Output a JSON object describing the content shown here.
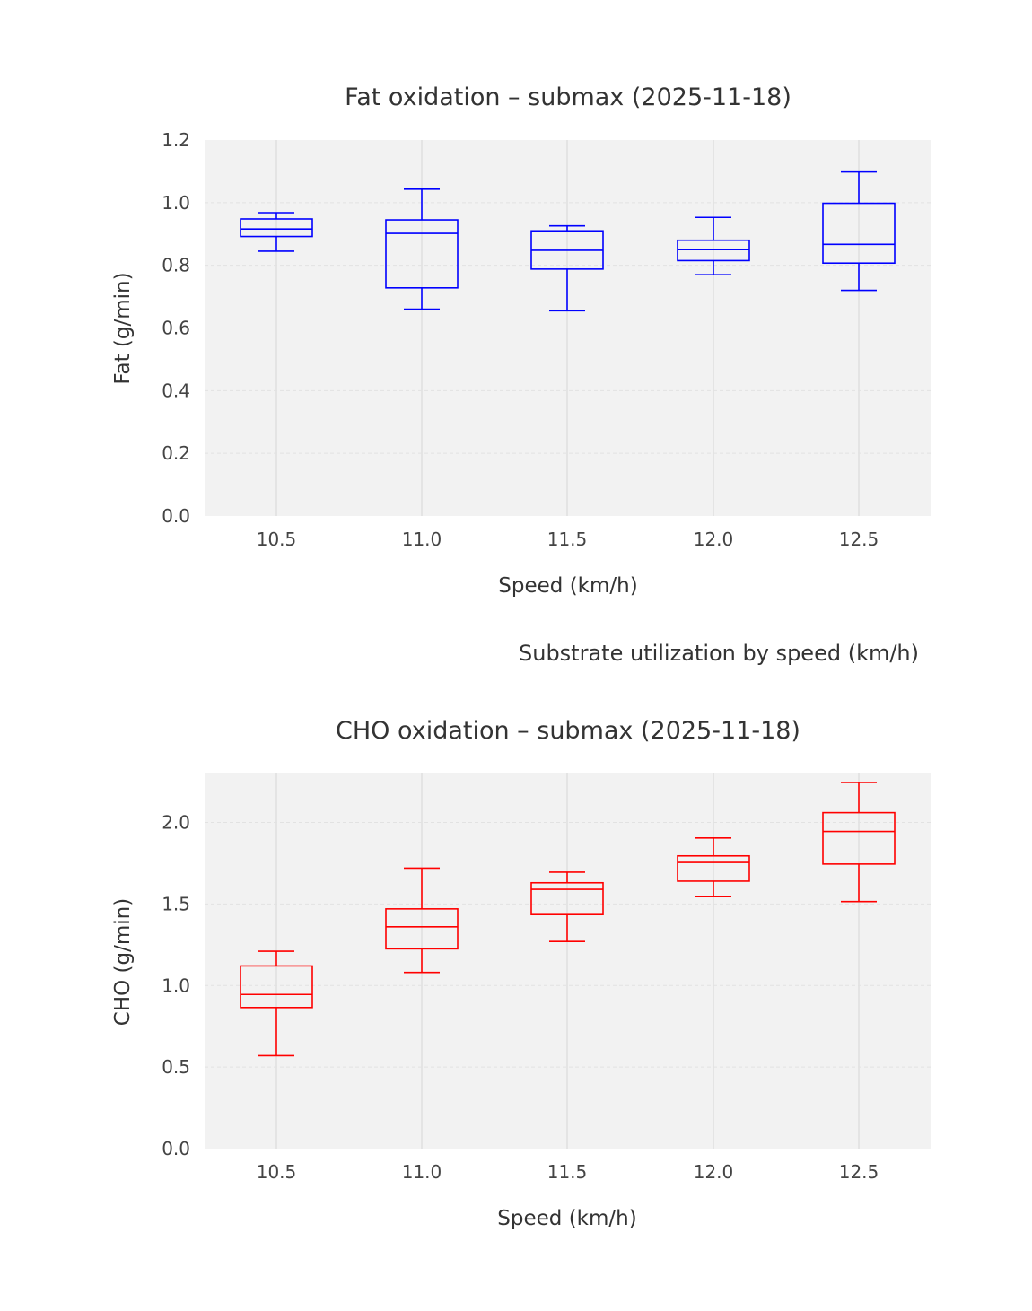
{
  "suptitle": "Substrate utilization by speed (km/h)",
  "chart_data": [
    {
      "type": "box",
      "title": "Fat oxidation – submax (2025-11-18)",
      "xlabel": "Speed (km/h)",
      "ylabel": "Fat (g/min)",
      "categories": [
        "10.5",
        "11.0",
        "11.5",
        "12.0",
        "12.5"
      ],
      "ylim": [
        0,
        1.2
      ],
      "yticks": [
        0.0,
        0.2,
        0.4,
        0.6,
        0.8,
        1.0,
        1.2
      ],
      "ytick_labels": [
        "0.0",
        "0.2",
        "0.4",
        "0.6",
        "0.8",
        "1.0",
        "1.2"
      ],
      "grid": true,
      "color": "#0000ff",
      "boxes": [
        {
          "whislo": 0.845,
          "q1": 0.892,
          "med": 0.916,
          "q3": 0.948,
          "whishi": 0.968
        },
        {
          "whislo": 0.66,
          "q1": 0.728,
          "med": 0.902,
          "q3": 0.945,
          "whishi": 1.043
        },
        {
          "whislo": 0.655,
          "q1": 0.788,
          "med": 0.848,
          "q3": 0.91,
          "whishi": 0.926
        },
        {
          "whislo": 0.77,
          "q1": 0.815,
          "med": 0.85,
          "q3": 0.88,
          "whishi": 0.953
        },
        {
          "whislo": 0.72,
          "q1": 0.807,
          "med": 0.867,
          "q3": 0.998,
          "whishi": 1.098
        }
      ]
    },
    {
      "type": "box",
      "title": "CHO oxidation – submax (2025-11-18)",
      "xlabel": "Speed (km/h)",
      "ylabel": "CHO (g/min)",
      "categories": [
        "10.5",
        "11.0",
        "11.5",
        "12.0",
        "12.5"
      ],
      "ylim": [
        0,
        2.3
      ],
      "yticks": [
        0.0,
        0.5,
        1.0,
        1.5,
        2.0
      ],
      "ytick_labels": [
        "0.0",
        "0.5",
        "1.0",
        "1.5",
        "2.0"
      ],
      "grid": true,
      "color": "#ff0000",
      "boxes": [
        {
          "whislo": 0.57,
          "q1": 0.865,
          "med": 0.945,
          "q3": 1.12,
          "whishi": 1.21
        },
        {
          "whislo": 1.08,
          "q1": 1.225,
          "med": 1.36,
          "q3": 1.47,
          "whishi": 1.72
        },
        {
          "whislo": 1.27,
          "q1": 1.435,
          "med": 1.59,
          "q3": 1.63,
          "whishi": 1.695
        },
        {
          "whislo": 1.545,
          "q1": 1.64,
          "med": 1.755,
          "q3": 1.795,
          "whishi": 1.905
        },
        {
          "whislo": 1.515,
          "q1": 1.745,
          "med": 1.945,
          "q3": 2.06,
          "whishi": 2.245
        }
      ]
    }
  ]
}
